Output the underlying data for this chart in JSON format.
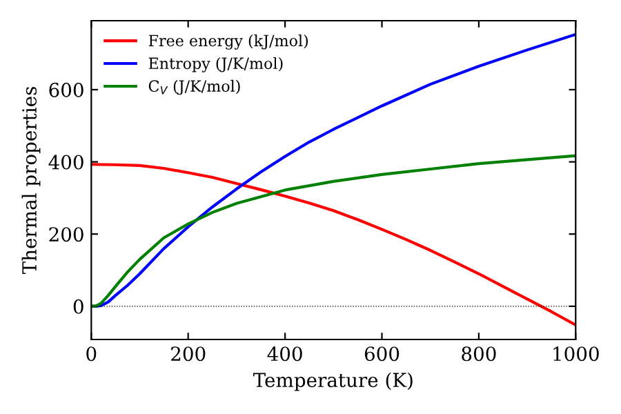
{
  "chart_data": {
    "type": "line",
    "xlabel": "Temperature (K)",
    "ylabel": "Thermal properties",
    "xlim": [
      0,
      1000
    ],
    "ylim": [
      -92,
      791
    ],
    "xticks": [
      0,
      200,
      400,
      600,
      800,
      1000
    ],
    "yticks": [
      0,
      200,
      400,
      600
    ],
    "grid": false,
    "legend": "top left",
    "marker": "none",
    "line_style": "solid",
    "ref_lines": [
      {
        "axis": "y",
        "value": 0,
        "color": "#000000",
        "line_style": "dotted"
      }
    ],
    "series": [
      {
        "name": "Free energy (kJ/mol)",
        "color": "#ff0000",
        "x": [
          0,
          50,
          100,
          150,
          200,
          250,
          300,
          350,
          400,
          450,
          500,
          550,
          600,
          650,
          700,
          750,
          800,
          850,
          900,
          950,
          1000
        ],
        "values": [
          393,
          392,
          390,
          382,
          370,
          357,
          340,
          323,
          305,
          286,
          265,
          240,
          213,
          185,
          155,
          123,
          90,
          55,
          20,
          -15,
          -52
        ]
      },
      {
        "name": "Entropy (J/K/mol)",
        "color": "#0000ff",
        "x": [
          0,
          10,
          20,
          35,
          50,
          75,
          100,
          150,
          200,
          250,
          300,
          350,
          400,
          450,
          500,
          600,
          700,
          800,
          900,
          1000
        ],
        "values": [
          0,
          0,
          2,
          12,
          30,
          58,
          90,
          160,
          220,
          275,
          325,
          372,
          415,
          455,
          490,
          555,
          615,
          665,
          710,
          753
        ]
      },
      {
        "name": "C$_{V}$ (J/K/mol)",
        "color": "#008000",
        "x": [
          0,
          10,
          20,
          35,
          50,
          75,
          100,
          150,
          200,
          250,
          300,
          400,
          500,
          600,
          700,
          800,
          900,
          1000
        ],
        "values": [
          0,
          1,
          8,
          30,
          55,
          95,
          130,
          190,
          228,
          260,
          285,
          322,
          346,
          365,
          380,
          395,
          406,
          417
        ]
      }
    ]
  }
}
